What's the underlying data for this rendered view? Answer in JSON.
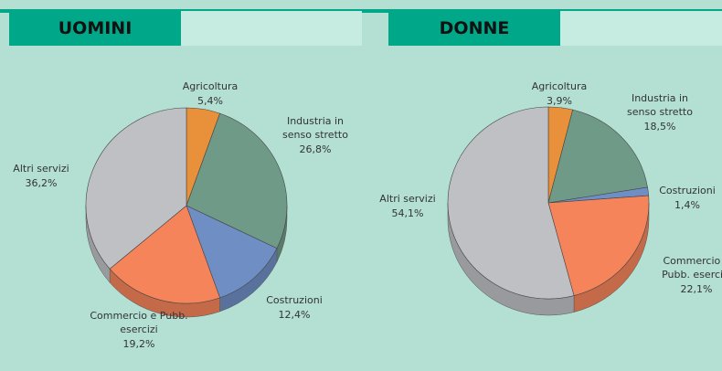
{
  "chart_data": [
    {
      "type": "pie",
      "title": "UOMINI",
      "categories": [
        "Agricoltura",
        "Industria in senso stretto",
        "Costruzioni",
        "Commercio e Pubb. esercizi",
        "Altri servizi"
      ],
      "values": [
        5.4,
        26.8,
        12.4,
        19.2,
        36.2
      ],
      "value_labels": [
        "5,4%",
        "26,8%",
        "12,4%",
        "19,2%",
        "36,2%"
      ],
      "colors": [
        "#e8913a",
        "#6f9a87",
        "#6e8ec4",
        "#f5845a",
        "#bfc0c4"
      ]
    },
    {
      "type": "pie",
      "title": "DONNE",
      "categories": [
        "Agricoltura",
        "Industria in senso stretto",
        "Costruzioni",
        "Commercio e Pubb. esercizi",
        "Altri servizi"
      ],
      "values": [
        3.9,
        18.5,
        1.4,
        22.1,
        54.1
      ],
      "value_labels": [
        "3,9%",
        "18,5%",
        "1,4%",
        "22,1%",
        "54,1%"
      ],
      "colors": [
        "#e8913a",
        "#6f9a87",
        "#6e8ec4",
        "#f5845a",
        "#bfc0c4"
      ]
    }
  ]
}
